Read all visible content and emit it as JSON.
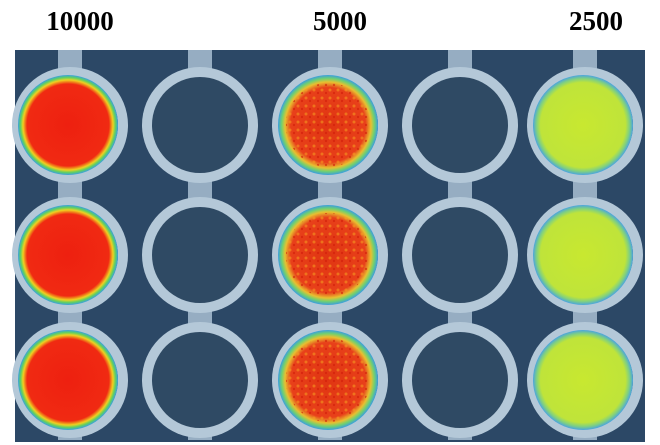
{
  "column_labels": [
    "10000",
    "5000",
    "2500"
  ]
}
